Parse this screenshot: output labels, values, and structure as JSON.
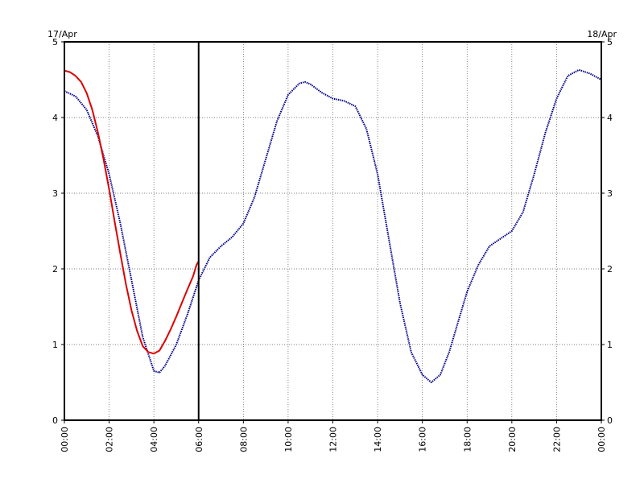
{
  "chart_data": {
    "type": "line",
    "dates": {
      "left": "17/Apr",
      "right": "18/Apr"
    },
    "x_ticks": [
      "00:00",
      "02:00",
      "04:00",
      "06:00",
      "08:00",
      "10:00",
      "12:00",
      "14:00",
      "16:00",
      "18:00",
      "20:00",
      "22:00",
      "00:00"
    ],
    "y_ticks": [
      "0",
      "1",
      "2",
      "3",
      "4",
      "5"
    ],
    "xlim": [
      0,
      24
    ],
    "ylim": [
      0,
      5
    ],
    "grid": true,
    "marker_hour": 6,
    "series": [
      {
        "color": "#00008b",
        "style": "dotted",
        "points": [
          [
            0,
            4.35
          ],
          [
            0.5,
            4.28
          ],
          [
            1,
            4.1
          ],
          [
            1.5,
            3.75
          ],
          [
            2,
            3.25
          ],
          [
            2.5,
            2.6
          ],
          [
            3,
            1.85
          ],
          [
            3.5,
            1.1
          ],
          [
            4,
            0.65
          ],
          [
            4.25,
            0.63
          ],
          [
            4.5,
            0.72
          ],
          [
            5,
            1.0
          ],
          [
            5.5,
            1.4
          ],
          [
            6,
            1.85
          ],
          [
            6.5,
            2.15
          ],
          [
            7,
            2.3
          ],
          [
            7.5,
            2.42
          ],
          [
            8,
            2.6
          ],
          [
            8.5,
            2.95
          ],
          [
            9,
            3.45
          ],
          [
            9.5,
            3.95
          ],
          [
            10,
            4.3
          ],
          [
            10.5,
            4.45
          ],
          [
            10.75,
            4.47
          ],
          [
            11,
            4.44
          ],
          [
            11.5,
            4.33
          ],
          [
            12,
            4.25
          ],
          [
            12.5,
            4.22
          ],
          [
            13,
            4.15
          ],
          [
            13.5,
            3.85
          ],
          [
            14,
            3.25
          ],
          [
            14.5,
            2.4
          ],
          [
            15,
            1.55
          ],
          [
            15.5,
            0.9
          ],
          [
            16,
            0.6
          ],
          [
            16.4,
            0.5
          ],
          [
            16.8,
            0.6
          ],
          [
            17.2,
            0.9
          ],
          [
            17.6,
            1.3
          ],
          [
            18,
            1.7
          ],
          [
            18.5,
            2.05
          ],
          [
            19,
            2.3
          ],
          [
            19.5,
            2.4
          ],
          [
            20,
            2.5
          ],
          [
            20.5,
            2.75
          ],
          [
            21,
            3.25
          ],
          [
            21.5,
            3.8
          ],
          [
            22,
            4.25
          ],
          [
            22.5,
            4.55
          ],
          [
            23,
            4.63
          ],
          [
            23.5,
            4.58
          ],
          [
            24,
            4.5
          ]
        ]
      },
      {
        "color": "#dd0000",
        "style": "solid",
        "points": [
          [
            0,
            4.62
          ],
          [
            0.25,
            4.6
          ],
          [
            0.5,
            4.55
          ],
          [
            0.75,
            4.47
          ],
          [
            1,
            4.32
          ],
          [
            1.25,
            4.1
          ],
          [
            1.5,
            3.8
          ],
          [
            1.75,
            3.45
          ],
          [
            2,
            3.05
          ],
          [
            2.25,
            2.62
          ],
          [
            2.5,
            2.2
          ],
          [
            2.75,
            1.8
          ],
          [
            3,
            1.45
          ],
          [
            3.25,
            1.18
          ],
          [
            3.5,
            0.98
          ],
          [
            3.75,
            0.9
          ],
          [
            4,
            0.88
          ],
          [
            4.25,
            0.92
          ],
          [
            4.5,
            1.05
          ],
          [
            4.75,
            1.2
          ],
          [
            5,
            1.37
          ],
          [
            5.25,
            1.55
          ],
          [
            5.5,
            1.73
          ],
          [
            5.75,
            1.9
          ],
          [
            5.9,
            2.05
          ],
          [
            6,
            2.1
          ]
        ]
      }
    ]
  }
}
